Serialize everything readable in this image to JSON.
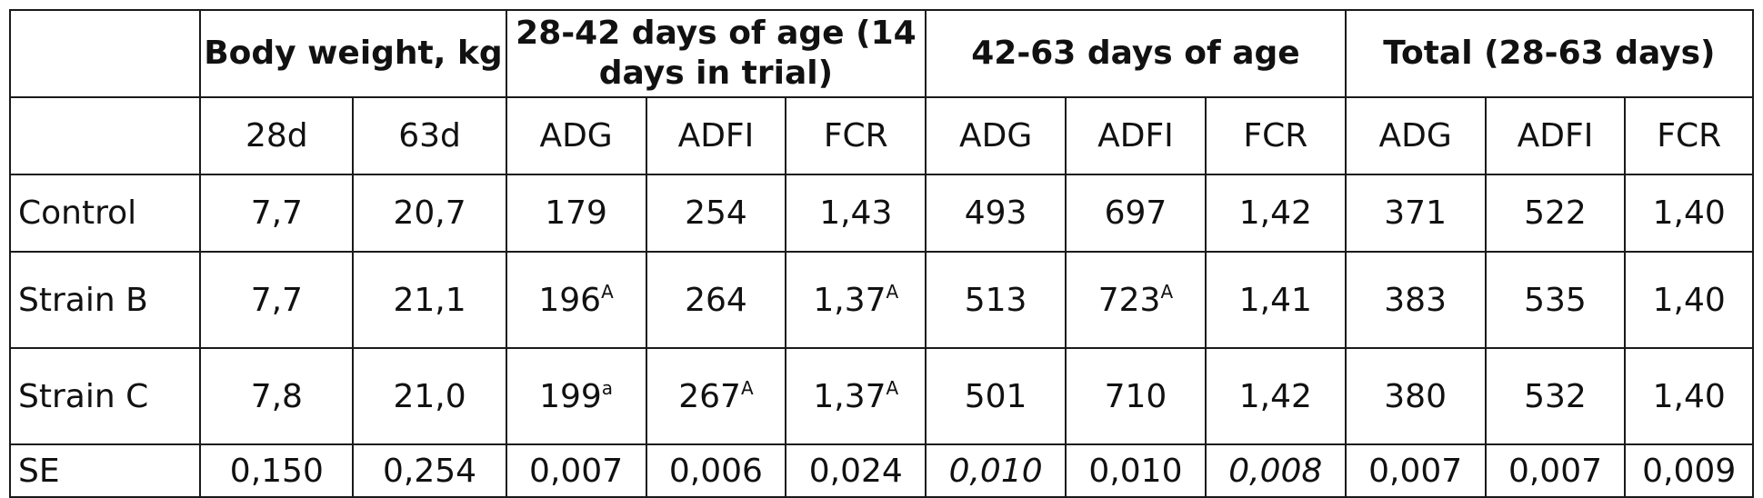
{
  "table": {
    "group_headers": [
      "",
      "Body weight, kg",
      "28-42 days of age (14 days in trial)",
      "42-63 days of age",
      "Total (28-63 days)"
    ],
    "sub_headers": [
      "",
      "28d",
      "63d",
      "ADG",
      "ADFI",
      "FCR",
      "ADG",
      "ADFI",
      "FCR",
      "ADG",
      "ADFI",
      "FCR"
    ],
    "rows": [
      {
        "label": "Control",
        "cells": [
          {
            "v": "7,7"
          },
          {
            "v": "20,7"
          },
          {
            "v": "179"
          },
          {
            "v": "254"
          },
          {
            "v": "1,43"
          },
          {
            "v": "493"
          },
          {
            "v": "697"
          },
          {
            "v": "1,42"
          },
          {
            "v": "371"
          },
          {
            "v": "522"
          },
          {
            "v": "1,40"
          }
        ]
      },
      {
        "label": "Strain B",
        "cells": [
          {
            "v": "7,7"
          },
          {
            "v": "21,1"
          },
          {
            "v": "196",
            "sup": "A"
          },
          {
            "v": "264"
          },
          {
            "v": "1,37",
            "sup": "A"
          },
          {
            "v": "513"
          },
          {
            "v": "723",
            "sup": "A"
          },
          {
            "v": "1,41"
          },
          {
            "v": "383"
          },
          {
            "v": "535"
          },
          {
            "v": "1,40"
          }
        ]
      },
      {
        "label": "Strain C",
        "cells": [
          {
            "v": "7,8"
          },
          {
            "v": "21,0"
          },
          {
            "v": "199",
            "sup": "a"
          },
          {
            "v": "267",
            "sup": "A"
          },
          {
            "v": "1,37",
            "sup": "A"
          },
          {
            "v": "501"
          },
          {
            "v": "710"
          },
          {
            "v": "1,42"
          },
          {
            "v": "380"
          },
          {
            "v": "532"
          },
          {
            "v": "1,40"
          }
        ]
      },
      {
        "label": "SE",
        "cells": [
          {
            "v": "0,150"
          },
          {
            "v": "0,254"
          },
          {
            "v": "0,007"
          },
          {
            "v": "0,006"
          },
          {
            "v": "0,024"
          },
          {
            "v": "0,010",
            "italic": true
          },
          {
            "v": "0,010"
          },
          {
            "v": "0,008",
            "italic": true
          },
          {
            "v": "0,007"
          },
          {
            "v": "0,007"
          },
          {
            "v": "0,009"
          }
        ]
      }
    ]
  }
}
